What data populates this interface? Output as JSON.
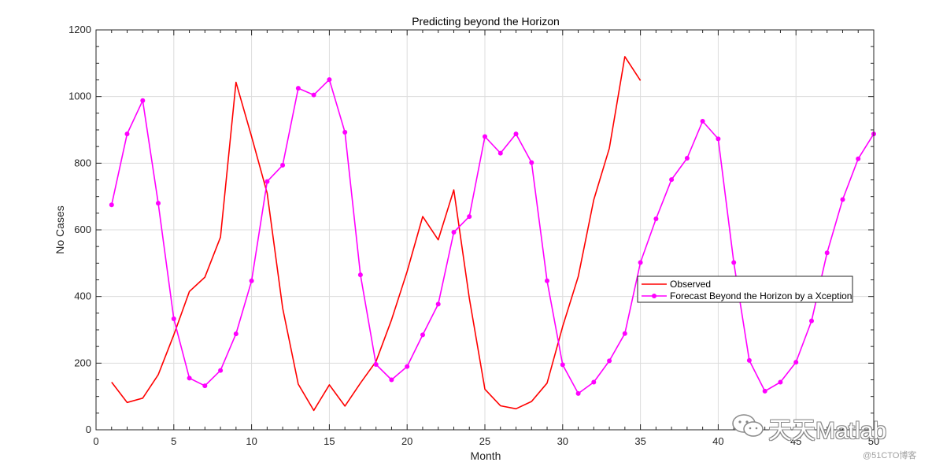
{
  "chart_data": {
    "type": "line",
    "title": "Predicting beyond the Horizon",
    "xlabel": "Month",
    "ylabel": "No Cases",
    "xlim": [
      0,
      50
    ],
    "ylim": [
      0,
      1200
    ],
    "xticks": [
      0,
      5,
      10,
      15,
      20,
      25,
      30,
      35,
      40,
      45,
      50
    ],
    "yticks": [
      0,
      200,
      400,
      600,
      800,
      1000,
      1200
    ],
    "grid": true,
    "legend_position": "right",
    "series": [
      {
        "name": "Observed",
        "color": "#ff0000",
        "marker": "none",
        "x": [
          1,
          2,
          3,
          4,
          5,
          6,
          7,
          8,
          9,
          10,
          11,
          12,
          13,
          14,
          15,
          16,
          17,
          18,
          19,
          20,
          21,
          22,
          23,
          24,
          25,
          26,
          27,
          28,
          29,
          30,
          31,
          32,
          33,
          34,
          35
        ],
        "values": [
          143,
          82,
          95,
          165,
          285,
          415,
          458,
          578,
          1043,
          880,
          710,
          365,
          137,
          58,
          135,
          71,
          140,
          205,
          330,
          475,
          640,
          570,
          720,
          395,
          122,
          72,
          63,
          85,
          140,
          310,
          460,
          690,
          845,
          1120,
          1048
        ]
      },
      {
        "name": "Forecast Beyond the Horizon by a Xception",
        "color": "#ff00ff",
        "marker": "circle",
        "x": [
          1,
          2,
          3,
          4,
          5,
          6,
          7,
          8,
          9,
          10,
          11,
          12,
          13,
          14,
          15,
          16,
          17,
          18,
          19,
          20,
          21,
          22,
          23,
          24,
          25,
          26,
          27,
          28,
          29,
          30,
          31,
          32,
          33,
          34,
          35,
          36,
          37,
          38,
          39,
          40,
          41,
          42,
          43,
          44,
          45,
          46,
          47,
          48,
          49,
          50
        ],
        "values": [
          675,
          888,
          988,
          680,
          333,
          155,
          132,
          178,
          288,
          447,
          745,
          794,
          1025,
          1005,
          1051,
          893,
          465,
          196,
          150,
          190,
          285,
          377,
          593,
          640,
          880,
          830,
          888,
          802,
          447,
          195,
          109,
          143,
          207,
          289,
          502,
          633,
          751,
          815,
          926,
          873,
          502,
          208,
          116,
          143,
          203,
          327,
          531,
          691,
          813,
          888
        ]
      }
    ]
  },
  "watermark": {
    "logo_icon": "wechat-icon",
    "account_name": "天天Matlab",
    "site": "@51CTO博客"
  }
}
